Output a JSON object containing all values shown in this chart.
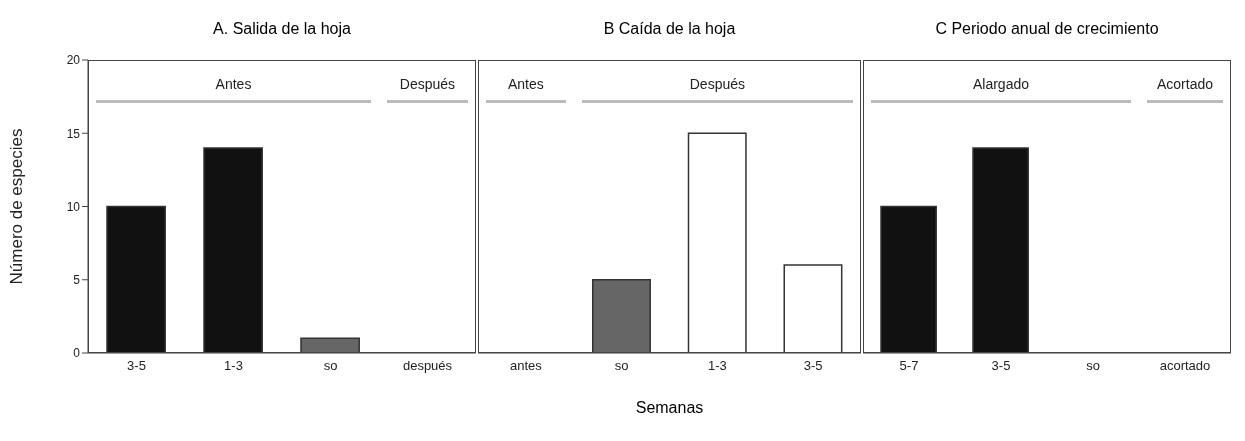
{
  "chart_data": [
    {
      "type": "bar",
      "title": "A.   Salida de la hoja",
      "ylabel": "Número de especies",
      "categories": [
        "3-5",
        "1-3",
        "so",
        "después"
      ],
      "values": [
        10,
        14,
        1,
        0
      ],
      "colors": [
        "#111111",
        "#111111",
        "#666666",
        "#ffffff"
      ],
      "ylim": [
        0,
        20
      ],
      "yticks": [
        0,
        5,
        10,
        15,
        20
      ],
      "grid": false,
      "legend": false,
      "annotations": [
        "Antes",
        "Después"
      ]
    },
    {
      "type": "bar",
      "title": "B   Caída de la hoja",
      "xlabel": "Semanas",
      "categories": [
        "antes",
        "so",
        "1-3",
        "3-5"
      ],
      "values": [
        0,
        5,
        15,
        6
      ],
      "colors": [
        "#ffffff",
        "#666666",
        "#ffffff",
        "#ffffff"
      ],
      "ylim": [
        0,
        20
      ],
      "yticks": [
        0,
        5,
        10,
        15,
        20
      ],
      "tick_labels": "x",
      "grid": false,
      "legend": false,
      "annotations": [
        "Antes",
        "Después"
      ]
    },
    {
      "type": "bar",
      "title": "C   Periodo anual de crecimiento",
      "categories": [
        "5-7",
        "3-5",
        "so",
        "acortado"
      ],
      "values": [
        10,
        14,
        0,
        0
      ],
      "colors": [
        "#111111",
        "#111111",
        "#ffffff",
        "#ffffff"
      ],
      "ylim": [
        0,
        20
      ],
      "yticks": [
        0,
        5,
        10,
        15,
        20
      ],
      "tick_labels": "x",
      "grid": false,
      "legend": false,
      "annotations": [
        "Alargado",
        "Acortado"
      ]
    }
  ]
}
